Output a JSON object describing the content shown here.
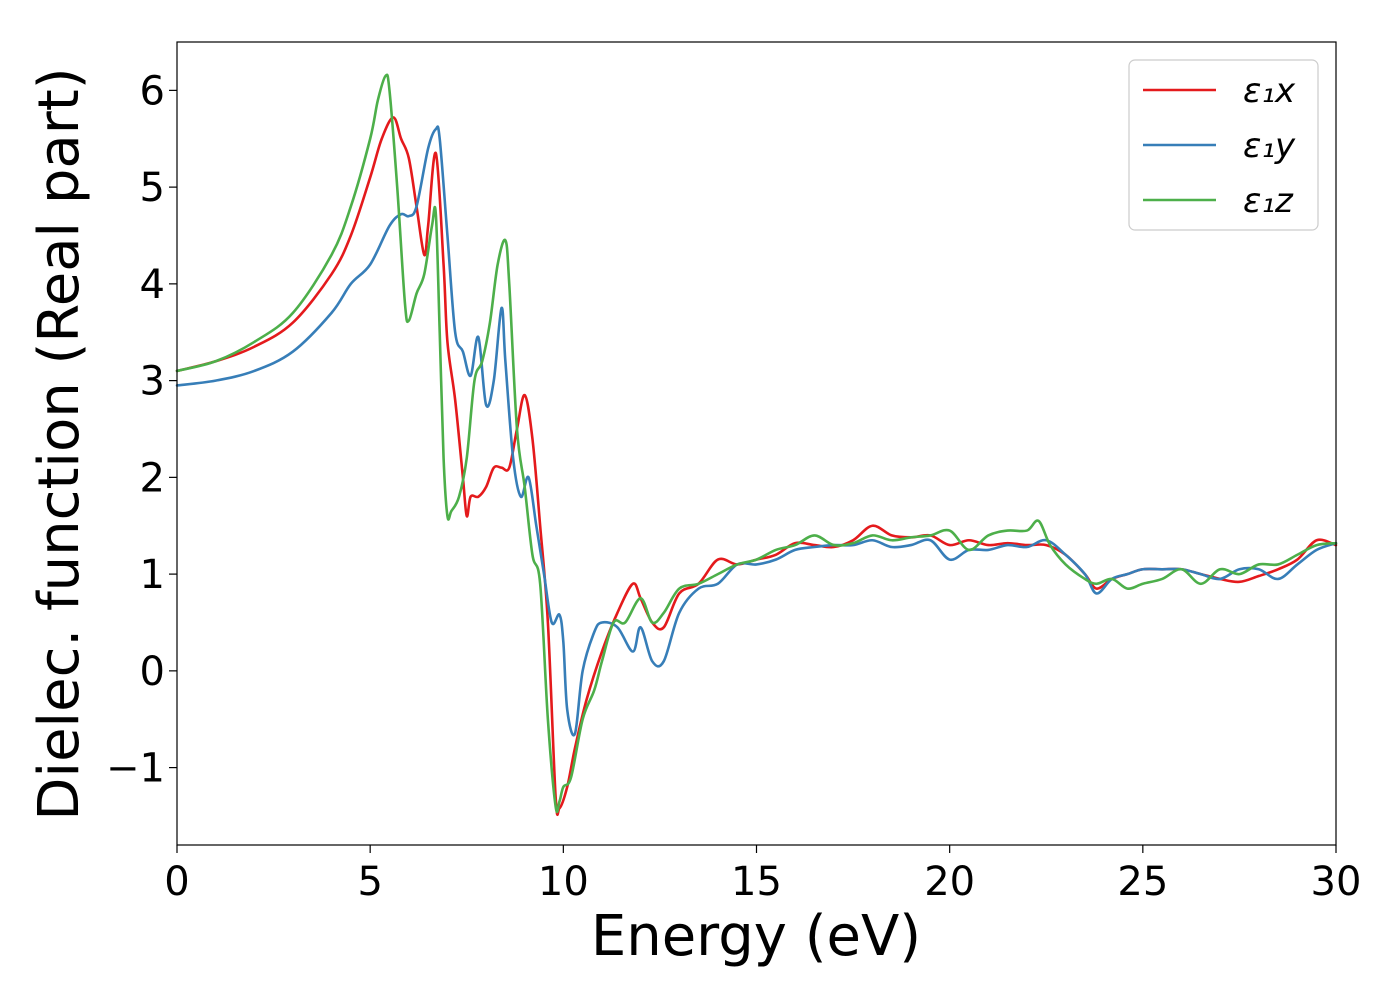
{
  "chart_data": {
    "type": "line",
    "title": "",
    "xlabel": "Energy (eV)",
    "ylabel": "Dielec. function (Real part)",
    "xlim": [
      0,
      30
    ],
    "ylim": [
      -1.8,
      6.5
    ],
    "xticks": [
      0,
      5,
      10,
      15,
      20,
      25,
      30
    ],
    "xtick_labels": [
      "0",
      "5",
      "10",
      "15",
      "20",
      "25",
      "30"
    ],
    "yticks": [
      -1,
      0,
      1,
      2,
      3,
      4,
      5,
      6
    ],
    "ytick_labels": [
      "−1",
      "0",
      "1",
      "2",
      "3",
      "4",
      "5",
      "6"
    ],
    "grid": false,
    "legend_position": "top-right",
    "series": [
      {
        "name": "ε₁x",
        "color": "#e41a1c",
        "x": [
          0,
          1,
          2,
          3,
          4,
          4.5,
          5,
          5.3,
          5.6,
          5.8,
          6.0,
          6.2,
          6.4,
          6.5,
          6.7,
          6.9,
          7.0,
          7.2,
          7.4,
          7.5,
          7.6,
          7.8,
          8.0,
          8.2,
          8.4,
          8.6,
          8.8,
          9.0,
          9.2,
          9.4,
          9.6,
          9.8,
          9.9,
          10.1,
          10.3,
          10.6,
          11.0,
          11.4,
          11.8,
          12.0,
          12.3,
          12.6,
          13.0,
          13.5,
          14.0,
          14.5,
          15.0,
          15.5,
          16.0,
          16.5,
          17.0,
          17.5,
          18.0,
          18.5,
          19.0,
          19.5,
          20.0,
          20.5,
          21.0,
          21.5,
          22.0,
          22.5,
          23.0,
          23.5,
          23.8,
          24.2,
          24.6,
          25.0,
          25.5,
          26.0,
          26.5,
          27.0,
          27.5,
          28.0,
          28.5,
          29.0,
          29.5,
          30.0
        ],
        "values": [
          3.1,
          3.2,
          3.35,
          3.6,
          4.1,
          4.5,
          5.1,
          5.5,
          5.72,
          5.5,
          5.3,
          4.8,
          4.3,
          4.6,
          5.35,
          4.2,
          3.4,
          2.8,
          2.0,
          1.6,
          1.8,
          1.8,
          1.9,
          2.1,
          2.1,
          2.1,
          2.5,
          2.85,
          2.4,
          1.5,
          0.5,
          -1.3,
          -1.42,
          -1.2,
          -0.8,
          -0.3,
          0.2,
          0.6,
          0.9,
          0.75,
          0.5,
          0.45,
          0.8,
          0.9,
          1.15,
          1.1,
          1.15,
          1.2,
          1.32,
          1.3,
          1.28,
          1.35,
          1.5,
          1.4,
          1.38,
          1.4,
          1.3,
          1.35,
          1.3,
          1.32,
          1.3,
          1.3,
          1.2,
          1.0,
          0.85,
          0.95,
          1.0,
          1.05,
          1.05,
          1.05,
          1.0,
          0.95,
          0.92,
          0.98,
          1.05,
          1.15,
          1.35,
          1.3
        ]
      },
      {
        "name": "ε₁y",
        "color": "#377eb8",
        "x": [
          0,
          1,
          2,
          3,
          4,
          4.5,
          5,
          5.5,
          5.8,
          6.0,
          6.2,
          6.5,
          6.7,
          6.8,
          7.0,
          7.2,
          7.4,
          7.6,
          7.8,
          8.0,
          8.2,
          8.4,
          8.5,
          8.7,
          8.9,
          9.1,
          9.3,
          9.5,
          9.7,
          9.9,
          10.0,
          10.1,
          10.3,
          10.5,
          10.8,
          11.0,
          11.4,
          11.8,
          12.0,
          12.3,
          12.6,
          13.0,
          13.5,
          14.0,
          14.5,
          15.0,
          15.5,
          16.0,
          16.5,
          17.0,
          17.5,
          18.0,
          18.5,
          19.0,
          19.5,
          20.0,
          20.5,
          21.0,
          21.5,
          22.0,
          22.5,
          23.0,
          23.5,
          23.8,
          24.2,
          24.6,
          25.0,
          25.5,
          26.0,
          26.5,
          27.0,
          27.5,
          28.0,
          28.5,
          29.0,
          29.5,
          30.0
        ],
        "values": [
          2.95,
          3.0,
          3.1,
          3.3,
          3.7,
          4.0,
          4.2,
          4.6,
          4.72,
          4.7,
          4.8,
          5.4,
          5.6,
          5.5,
          4.5,
          3.5,
          3.3,
          3.05,
          3.45,
          2.75,
          3.0,
          3.75,
          3.2,
          2.2,
          1.8,
          2.0,
          1.5,
          1.0,
          0.5,
          0.58,
          0.3,
          -0.4,
          -0.65,
          0.0,
          0.4,
          0.5,
          0.45,
          0.2,
          0.45,
          0.1,
          0.1,
          0.6,
          0.85,
          0.9,
          1.1,
          1.1,
          1.15,
          1.25,
          1.28,
          1.3,
          1.3,
          1.35,
          1.28,
          1.3,
          1.35,
          1.15,
          1.25,
          1.25,
          1.3,
          1.28,
          1.35,
          1.2,
          1.0,
          0.8,
          0.95,
          1.0,
          1.05,
          1.05,
          1.05,
          1.0,
          0.95,
          1.05,
          1.05,
          0.95,
          1.1,
          1.25,
          1.32
        ]
      },
      {
        "name": "ε₁z",
        "color": "#4daf4a",
        "x": [
          0,
          1,
          2,
          3,
          4,
          4.5,
          5,
          5.2,
          5.4,
          5.5,
          5.7,
          5.9,
          6.0,
          6.2,
          6.4,
          6.6,
          6.7,
          6.8,
          6.9,
          7.0,
          7.1,
          7.3,
          7.5,
          7.7,
          7.9,
          8.1,
          8.3,
          8.5,
          8.6,
          8.8,
          9.0,
          9.2,
          9.4,
          9.6,
          9.8,
          9.9,
          10.0,
          10.2,
          10.5,
          10.8,
          11.0,
          11.3,
          11.6,
          12.0,
          12.3,
          12.6,
          13.0,
          13.5,
          14.0,
          14.5,
          15.0,
          15.5,
          16.0,
          16.5,
          17.0,
          17.5,
          18.0,
          18.5,
          19.0,
          19.5,
          20.0,
          20.5,
          21.0,
          21.5,
          22.0,
          22.3,
          22.6,
          23.0,
          23.5,
          23.8,
          24.2,
          24.6,
          25.0,
          25.5,
          26.0,
          26.5,
          27.0,
          27.5,
          28.0,
          28.5,
          29.0,
          29.5,
          30.0
        ],
        "values": [
          3.1,
          3.2,
          3.4,
          3.7,
          4.3,
          4.8,
          5.5,
          5.9,
          6.15,
          6.0,
          5.0,
          3.8,
          3.62,
          3.9,
          4.1,
          4.6,
          4.72,
          3.5,
          2.2,
          1.6,
          1.65,
          1.8,
          2.2,
          3.0,
          3.2,
          3.6,
          4.2,
          4.45,
          4.0,
          2.5,
          1.9,
          1.2,
          0.9,
          -0.5,
          -1.4,
          -1.35,
          -1.2,
          -1.1,
          -0.5,
          -0.2,
          0.1,
          0.5,
          0.5,
          0.75,
          0.5,
          0.6,
          0.85,
          0.9,
          1.0,
          1.1,
          1.15,
          1.25,
          1.3,
          1.4,
          1.3,
          1.32,
          1.4,
          1.35,
          1.38,
          1.4,
          1.45,
          1.25,
          1.4,
          1.45,
          1.45,
          1.55,
          1.3,
          1.1,
          0.95,
          0.9,
          0.95,
          0.85,
          0.9,
          0.95,
          1.05,
          0.9,
          1.05,
          1.0,
          1.1,
          1.1,
          1.2,
          1.3,
          1.32
        ]
      }
    ]
  }
}
